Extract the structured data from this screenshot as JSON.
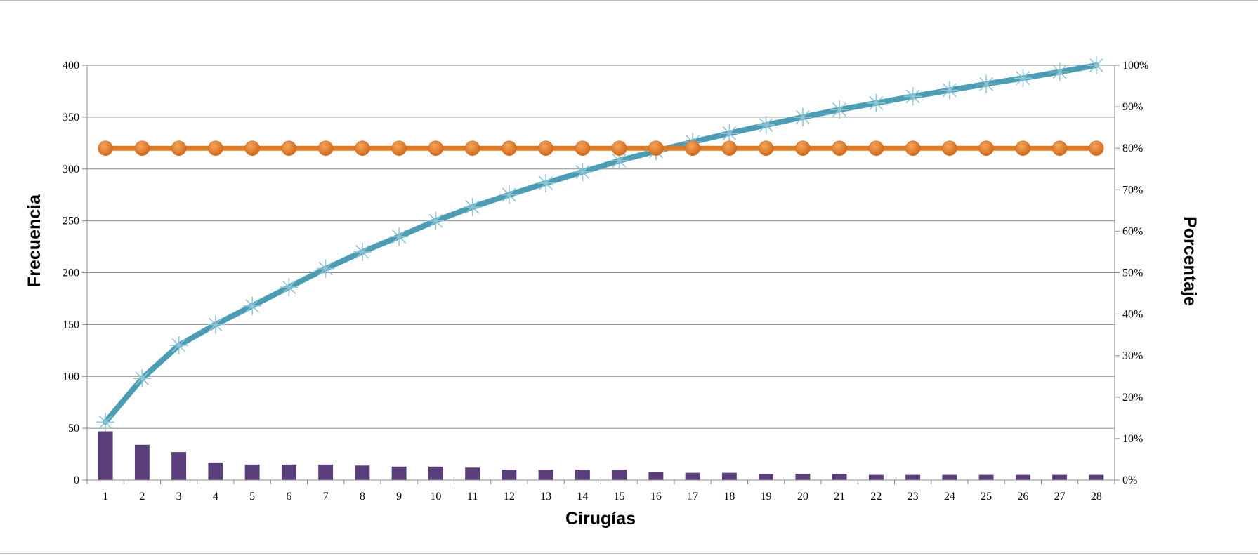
{
  "chart_data": {
    "type": "bar",
    "title": "",
    "xlabel": "Cirugías",
    "ylabel": "Frecuencia",
    "y2label": "Porcentaje",
    "categories": [
      "1",
      "2",
      "3",
      "4",
      "5",
      "6",
      "7",
      "8",
      "9",
      "10",
      "11",
      "12",
      "13",
      "14",
      "15",
      "16",
      "17",
      "18",
      "19",
      "20",
      "21",
      "22",
      "23",
      "24",
      "25",
      "26",
      "27",
      "28"
    ],
    "y_ticks": [
      "0",
      "50",
      "100",
      "150",
      "200",
      "250",
      "300",
      "350",
      "400"
    ],
    "y2_ticks": [
      "0%",
      "10%",
      "20%",
      "30%",
      "40%",
      "50%",
      "60%",
      "70%",
      "80%",
      "90%",
      "100%"
    ],
    "ylim": [
      0,
      400
    ],
    "y2lim": [
      0,
      100
    ],
    "grid": true,
    "legend": "none",
    "series": [
      {
        "type": "bar",
        "axis": "left",
        "color": "#5b3f7c",
        "values": [
          47,
          34,
          27,
          17,
          15,
          15,
          15,
          14,
          13,
          13,
          12,
          10,
          10,
          10,
          10,
          8,
          7,
          7,
          6,
          6,
          6,
          5,
          5,
          5,
          5,
          5,
          5,
          5
        ]
      },
      {
        "type": "line",
        "axis": "right",
        "marker": "asterisk",
        "color": "#4a9db5",
        "values": [
          14,
          24.5,
          32.5,
          37.5,
          42,
          46.5,
          51,
          55,
          58.7,
          62.5,
          65.8,
          68.8,
          71.6,
          74.3,
          77,
          79.3,
          81.5,
          83.6,
          85.6,
          87.5,
          89.3,
          90.9,
          92.5,
          94,
          95.5,
          96.9,
          98.4,
          100
        ]
      },
      {
        "type": "line",
        "axis": "right",
        "marker": "circle",
        "color": "#e07b22",
        "values": [
          80,
          80,
          80,
          80,
          80,
          80,
          80,
          80,
          80,
          80,
          80,
          80,
          80,
          80,
          80,
          80,
          80,
          80,
          80,
          80,
          80,
          80,
          80,
          80,
          80,
          80,
          80,
          80
        ]
      }
    ]
  }
}
